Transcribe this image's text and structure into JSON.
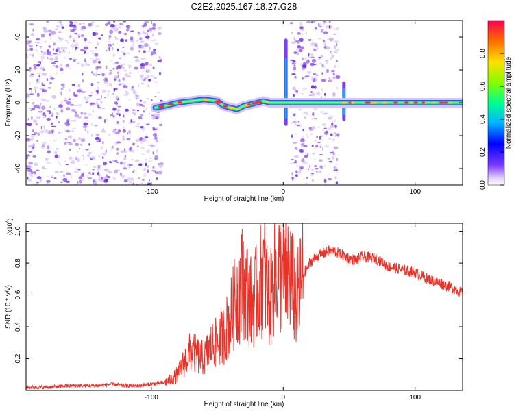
{
  "page": {
    "title": "C2E2.2025.167.18.27.G28"
  },
  "colors": {
    "snr_line": "#e8332a",
    "noise_points": "#6a2bd9",
    "axis": "#000000",
    "background": "#ffffff"
  },
  "chart_data": [
    {
      "type": "heatmap",
      "title": "C2E2.2025.167.18.27.G28",
      "xlabel": "Height of straight line (km)",
      "ylabel": "Frequency (Hz)",
      "xlim": [
        -195,
        136
      ],
      "ylim": [
        -50,
        50
      ],
      "xticks": [
        -100,
        0,
        100
      ],
      "xtick_labels": [
        "-100",
        "0",
        "100"
      ],
      "yticks": [
        -40,
        -20,
        0,
        20,
        40
      ],
      "ytick_labels": [
        "-40",
        "-20",
        "0",
        "20",
        "40"
      ],
      "grid": false,
      "noise_regions": [
        {
          "x_range": [
            -195,
            -92
          ],
          "y_range": [
            -50,
            50
          ]
        },
        {
          "x_range": [
            6,
            42
          ],
          "y_range": [
            -50,
            50
          ]
        }
      ],
      "signal_trace": {
        "x": [
          -97,
          -90,
          -80,
          -70,
          -60,
          -50,
          -45,
          -40,
          -35,
          -30,
          -25,
          -20,
          -15,
          -10,
          -5,
          0,
          48,
          60,
          80,
          100,
          120,
          136
        ],
        "y": [
          -3,
          -2,
          0,
          1,
          2,
          1,
          -2,
          -3,
          -4,
          -2,
          -1,
          0,
          1,
          0,
          0,
          0,
          0,
          0,
          0,
          0,
          0,
          0
        ]
      },
      "vertical_spikes": [
        {
          "x": 2,
          "y_range": [
            -13,
            38
          ]
        },
        {
          "x": 46,
          "y_range": [
            -10,
            12
          ]
        }
      ],
      "colorbar": {
        "label": "Normalized spectral amplitude",
        "range": [
          0,
          1
        ],
        "ticks": [
          0.0,
          0.2,
          0.4,
          0.6,
          0.8
        ],
        "tick_labels": [
          "0.0",
          "0.2",
          "0.4",
          "0.6",
          "0.8"
        ],
        "colormap": "rainbow"
      }
    },
    {
      "type": "line",
      "title": "",
      "xlabel": "Height of straight line (km)",
      "ylabel": "SNR (10 * v/v)",
      "y_multiplier_label": "(x10",
      "y_multiplier_exponent": "4",
      "xlim": [
        -195,
        136
      ],
      "ylim": [
        0,
        1.05
      ],
      "xticks": [
        -100,
        0,
        100
      ],
      "xtick_labels": [
        "-100",
        "0",
        "100"
      ],
      "yticks": [
        0.2,
        0.4,
        0.6,
        0.8,
        1.0
      ],
      "ytick_labels": [
        "0.2",
        "0.4",
        "0.6",
        "0.8",
        "1.0"
      ],
      "grid": false,
      "series": [
        {
          "x": [
            -195,
            -180,
            -160,
            -140,
            -130,
            -120,
            -110,
            -100,
            -90,
            -85,
            -80,
            -75,
            -70,
            -65,
            -60,
            -55,
            -50,
            -45,
            -40,
            -35,
            -30,
            -25,
            -20,
            -15,
            -10,
            -5,
            0,
            5,
            10,
            15,
            20,
            25,
            30,
            35,
            40,
            45,
            50,
            55,
            60,
            70,
            80,
            90,
            100,
            110,
            120,
            130,
            136
          ],
          "values": [
            0.02,
            0.02,
            0.03,
            0.03,
            0.04,
            0.03,
            0.03,
            0.04,
            0.05,
            0.07,
            0.1,
            0.18,
            0.25,
            0.22,
            0.2,
            0.28,
            0.3,
            0.35,
            0.45,
            0.6,
            0.7,
            0.55,
            0.6,
            0.75,
            0.55,
            0.78,
            0.7,
            0.75,
            0.55,
            0.72,
            0.8,
            0.84,
            0.86,
            0.88,
            0.87,
            0.85,
            0.83,
            0.82,
            0.84,
            0.83,
            0.78,
            0.76,
            0.74,
            0.7,
            0.67,
            0.64,
            0.61
          ]
        }
      ]
    }
  ]
}
